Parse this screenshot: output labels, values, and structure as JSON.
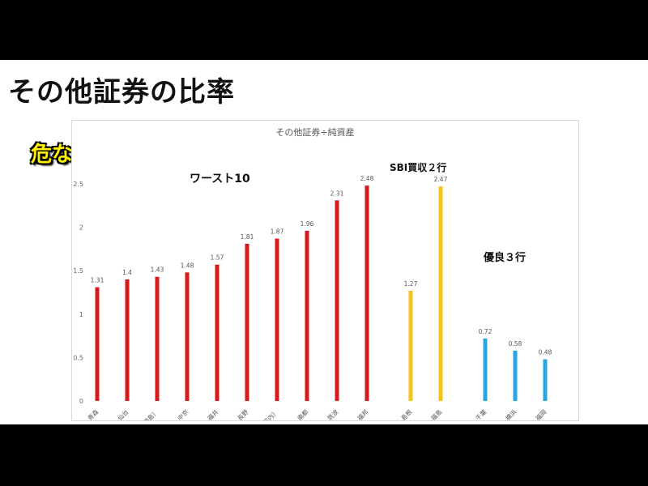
{
  "slide": {
    "title": "その他証券の比率",
    "badge": "危ない地銀"
  },
  "chart_data": {
    "type": "bar",
    "title": "その他証券÷純資産",
    "xlabel": "",
    "ylabel": "",
    "ylim": [
      0,
      2.5
    ],
    "yticks": [
      "0",
      "0.5",
      "1",
      "1.5",
      "2",
      "2.5"
    ],
    "grid": false,
    "groups": [
      {
        "label": "ワースト10",
        "color": "#d7191c",
        "categories": [
          "青森",
          "仙台",
          "大東（福島）",
          "中京",
          "福井",
          "長野",
          "ﾌｨﾃﾞｱHD（北都・荘内）",
          "南都",
          "筑波",
          "福邦"
        ],
        "values": [
          1.31,
          1.4,
          1.43,
          1.48,
          1.57,
          1.81,
          1.87,
          1.96,
          2.31,
          2.48
        ],
        "data_labels": [
          "1.31",
          "1.4",
          "1.43",
          "1.48",
          "1.57",
          "1.81",
          "1.87",
          "1.96",
          "2.31",
          "2.48"
        ]
      },
      {
        "label": "SBI買収２行",
        "color": "#f5c518",
        "categories": [
          "島根",
          "福島"
        ],
        "values": [
          1.27,
          2.47
        ],
        "data_labels": [
          "1.27",
          "2.47"
        ]
      },
      {
        "label": "優良３行",
        "color": "#29a8e0",
        "categories": [
          "千葉",
          "横浜",
          "福岡"
        ],
        "values": [
          0.72,
          0.58,
          0.48
        ],
        "data_labels": [
          "0.72",
          "0.58",
          "0.48"
        ]
      }
    ]
  }
}
